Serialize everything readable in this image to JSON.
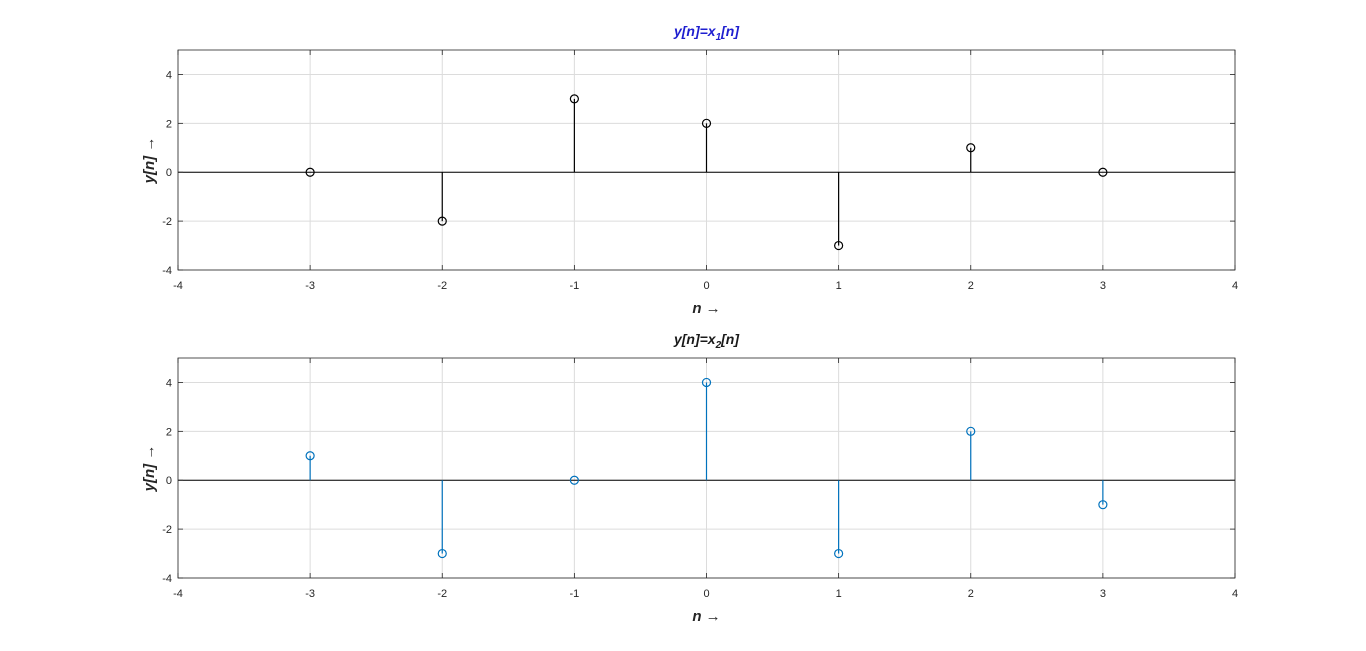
{
  "chart_data": [
    {
      "type": "stem",
      "title_parts": [
        "y[n]=x",
        "1",
        "[n]"
      ],
      "title_color": "#1f1fd0",
      "xlabel": "n →",
      "ylabel": "y[n] →",
      "xlim": [
        -4,
        4
      ],
      "ylim": [
        -4,
        5
      ],
      "xticks": [
        -4,
        -3,
        -2,
        -1,
        0,
        1,
        2,
        3,
        4
      ],
      "yticks": [
        -4,
        -2,
        0,
        2,
        4
      ],
      "grid": true,
      "series": [
        {
          "color": "#000000",
          "x": [
            -3,
            -2,
            -1,
            0,
            1,
            2,
            3
          ],
          "y": [
            0,
            -2,
            3,
            2,
            -3,
            1,
            0
          ]
        }
      ]
    },
    {
      "type": "stem",
      "title_parts": [
        "y[n]=x",
        "2",
        "[n]"
      ],
      "title_color": "#1a1a1a",
      "xlabel": "n →",
      "ylabel": "y[n] →",
      "xlim": [
        -4,
        4
      ],
      "ylim": [
        -4,
        5
      ],
      "xticks": [
        -4,
        -3,
        -2,
        -1,
        0,
        1,
        2,
        3,
        4
      ],
      "yticks": [
        -4,
        -2,
        0,
        2,
        4
      ],
      "grid": true,
      "series": [
        {
          "color": "#0072bd",
          "x": [
            -3,
            -2,
            -1,
            0,
            1,
            2,
            3
          ],
          "y": [
            1,
            -3,
            0,
            4,
            -3,
            2,
            -1
          ]
        }
      ]
    }
  ]
}
